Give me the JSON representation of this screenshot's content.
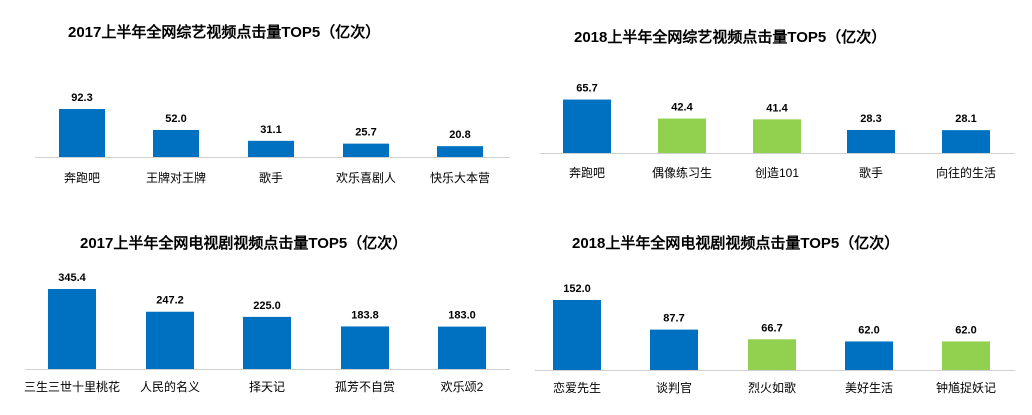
{
  "colors": {
    "blue": "#0070C0",
    "green": "#92D050",
    "axis": "#D0D0D0"
  },
  "chart_data": [
    {
      "type": "bar",
      "title": "2017上半年全网综艺视频点击量TOP5（亿次）",
      "categories": [
        "奔跑吧",
        "王牌对王牌",
        "歌手",
        "欢乐喜剧人",
        "快乐大本营"
      ],
      "values": [
        92.3,
        52.0,
        31.1,
        25.7,
        20.8
      ],
      "value_labels": [
        "92.3",
        "52.0",
        "31.1",
        "25.7",
        "20.8"
      ],
      "bar_colors": [
        "blue",
        "blue",
        "blue",
        "blue",
        "blue"
      ],
      "ylim": [
        0,
        100
      ]
    },
    {
      "type": "bar",
      "title": "2018上半年全网综艺视频点击量TOP5（亿次）",
      "categories": [
        "奔跑吧",
        "偶像练习生",
        "创造101",
        "歌手",
        "向往的生活"
      ],
      "values": [
        65.7,
        42.4,
        41.4,
        28.3,
        28.1
      ],
      "value_labels": [
        "65.7",
        "42.4",
        "41.4",
        "28.3",
        "28.1"
      ],
      "bar_colors": [
        "blue",
        "green",
        "green",
        "blue",
        "blue"
      ],
      "ylim": [
        0,
        75
      ]
    },
    {
      "type": "bar",
      "title": "2017上半年全网电视剧视频点击量TOP5（亿次）",
      "categories": [
        "三生三世十里桃花",
        "人民的名义",
        "择天记",
        "孤芳不自赏",
        "欢乐颂2"
      ],
      "values": [
        345.4,
        247.2,
        225.0,
        183.8,
        183.0
      ],
      "value_labels": [
        "345.4",
        "247.2",
        "225.0",
        "183.8",
        "183.0"
      ],
      "bar_colors": [
        "blue",
        "blue",
        "blue",
        "blue",
        "blue"
      ],
      "ylim": [
        0,
        345.4
      ]
    },
    {
      "type": "bar",
      "title": "2018上半年全网电视剧视频点击量TOP5（亿次）",
      "categories": [
        "恋爱先生",
        "谈判官",
        "烈火如歌",
        "美好生活",
        "钟馗捉妖记"
      ],
      "values": [
        152.0,
        87.7,
        66.7,
        62.0,
        62.0
      ],
      "value_labels": [
        "152.0",
        "87.7",
        "66.7",
        "62.0",
        "62.0"
      ],
      "bar_colors": [
        "blue",
        "blue",
        "green",
        "blue",
        "green"
      ],
      "ylim": [
        0,
        152.0
      ]
    }
  ]
}
